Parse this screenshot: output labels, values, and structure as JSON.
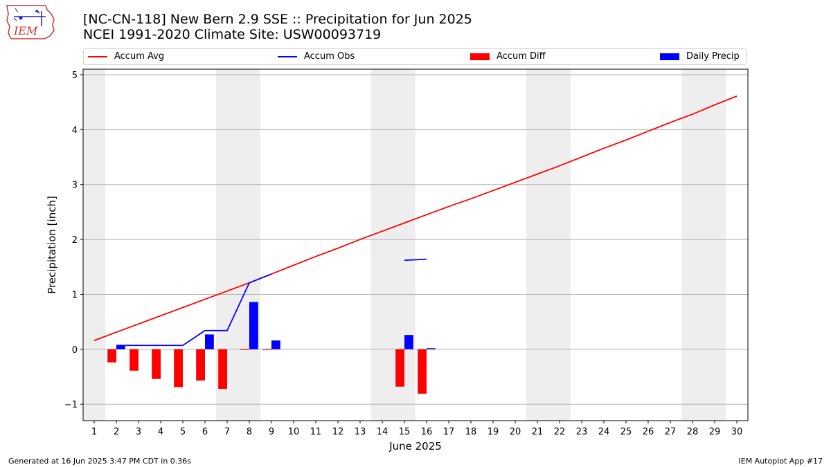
{
  "header": {
    "title_line1": "[NC-CN-118] New Bern 2.9 SSE :: Precipitation for Jun 2025",
    "title_line2": "NCEI 1991-2020 Climate Site: USW00093719"
  },
  "logo": {
    "text": "IEM"
  },
  "legend": {
    "items": [
      {
        "label": "Accum Avg",
        "kind": "line",
        "color": "#ff0000"
      },
      {
        "label": "Accum Obs",
        "kind": "line",
        "color": "#0000ff"
      },
      {
        "label": "Accum Diff",
        "kind": "patch",
        "color": "#ff0000"
      },
      {
        "label": "Daily Precip",
        "kind": "patch",
        "color": "#0000ff"
      }
    ]
  },
  "footer": {
    "left": "Generated at 16 Jun 2025 3:47 PM CDT in 0.36s",
    "right": "IEM Autoplot App #17"
  },
  "chart_data": {
    "type": "bar",
    "xlabel": "June 2025",
    "ylabel": "Precipitation [inch]",
    "xlim": [
      0.5,
      30.5
    ],
    "ylim": [
      -1.3,
      5.1
    ],
    "x_ticks": [
      1,
      2,
      3,
      4,
      5,
      6,
      7,
      8,
      9,
      10,
      11,
      12,
      13,
      14,
      15,
      16,
      17,
      18,
      19,
      20,
      21,
      22,
      23,
      24,
      25,
      26,
      27,
      28,
      29,
      30
    ],
    "y_ticks": [
      -1,
      0,
      1,
      2,
      3,
      4,
      5
    ],
    "y_tick_labels": [
      "−1",
      "0",
      "1",
      "2",
      "3",
      "4",
      "5"
    ],
    "grid": "horizontal",
    "legend_placement": "top",
    "weekend_shading": [
      [
        0.5,
        1.5
      ],
      [
        6.5,
        8.5
      ],
      [
        13.5,
        15.5
      ],
      [
        20.5,
        22.5
      ],
      [
        27.5,
        29.5
      ]
    ],
    "shade_color": "#eeeeee",
    "series": [
      {
        "name": "Accum Avg",
        "kind": "line",
        "color": "#ff0000",
        "x": [
          1,
          2,
          3,
          4,
          5,
          6,
          7,
          8,
          9,
          10,
          11,
          12,
          13,
          14,
          15,
          16,
          17,
          18,
          19,
          20,
          21,
          22,
          23,
          24,
          25,
          26,
          27,
          28,
          29,
          30
        ],
        "values": [
          0.16,
          0.31,
          0.46,
          0.61,
          0.76,
          0.91,
          1.06,
          1.21,
          1.37,
          1.53,
          1.69,
          1.84,
          2.0,
          2.15,
          2.3,
          2.45,
          2.6,
          2.74,
          2.89,
          3.04,
          3.19,
          3.34,
          3.5,
          3.66,
          3.81,
          3.97,
          4.13,
          4.28,
          4.45,
          4.61
        ]
      },
      {
        "name": "Accum Obs",
        "kind": "line",
        "color": "#0000ff",
        "segments": [
          {
            "x": [
              2,
              3,
              4,
              5,
              6,
              7,
              8,
              9
            ],
            "values": [
              0.07,
              0.07,
              0.07,
              0.07,
              0.34,
              0.34,
              1.21,
              1.37
            ]
          },
          {
            "x": [
              15,
              16
            ],
            "values": [
              1.62,
              1.64
            ]
          }
        ]
      },
      {
        "name": "Accum Diff",
        "kind": "bar",
        "color": "#ff0000",
        "x": [
          2,
          3,
          4,
          5,
          6,
          7,
          8,
          9,
          15,
          16
        ],
        "values": [
          -0.24,
          -0.39,
          -0.54,
          -0.69,
          -0.57,
          -0.72,
          -0.01,
          -0.01,
          -0.68,
          -0.81
        ]
      },
      {
        "name": "Daily Precip",
        "kind": "bar",
        "color": "#0000ff",
        "x": [
          2,
          6,
          8,
          9,
          15,
          16
        ],
        "values": [
          0.07,
          0.27,
          0.86,
          0.16,
          0.26,
          0.02
        ]
      }
    ]
  }
}
